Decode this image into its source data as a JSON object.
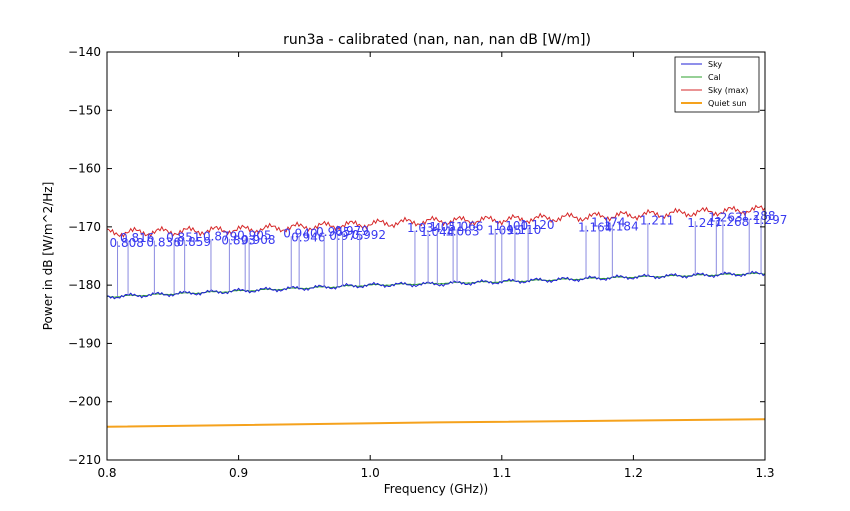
{
  "chart_data": {
    "type": "line",
    "title": "run3a - calibrated (nan, nan, nan dB [W/m])",
    "xlabel": "Frequency (GHz))",
    "ylabel": "Power in dB [W/m^2/Hz]",
    "xlim": [
      0.8,
      1.3
    ],
    "ylim": [
      -210,
      -140
    ],
    "xticks": [
      0.8,
      0.9,
      1.0,
      1.1,
      1.2,
      1.3
    ],
    "xtick_labels": [
      "0.8",
      "0.9",
      "1.0",
      "1.1",
      "1.2",
      "1.3"
    ],
    "yticks": [
      -140,
      -150,
      -160,
      -170,
      -180,
      -190,
      -200,
      -210
    ],
    "ytick_labels": [
      "−140",
      "−150",
      "−160",
      "−170",
      "−180",
      "−190",
      "−200",
      "−210"
    ],
    "legend_position": "top-right",
    "series": [
      {
        "name": "Sky",
        "color": "#1f1fd6",
        "x": [
          0.8,
          0.85,
          0.9,
          0.95,
          1.0,
          1.05,
          1.1,
          1.15,
          1.2,
          1.25,
          1.3
        ],
        "values": [
          -182.0,
          -181.5,
          -181.0,
          -180.5,
          -180.0,
          -179.8,
          -179.4,
          -179.0,
          -178.6,
          -178.3,
          -178.0
        ]
      },
      {
        "name": "Cal",
        "color": "#2ca02c",
        "x": [
          0.8,
          0.9,
          1.0,
          1.1,
          1.2,
          1.3
        ],
        "values": [
          -182.0,
          -181.0,
          -180.0,
          -179.4,
          -178.6,
          -178.0
        ]
      },
      {
        "name": "Sky (max)",
        "color": "#d62728",
        "x": [
          0.8,
          0.85,
          0.9,
          0.95,
          1.0,
          1.05,
          1.1,
          1.15,
          1.2,
          1.25,
          1.3
        ],
        "values": [
          -171.0,
          -170.8,
          -170.5,
          -170.0,
          -169.5,
          -169.0,
          -168.8,
          -168.4,
          -168.0,
          -167.5,
          -167.0
        ]
      },
      {
        "name": "Quiet sun",
        "color": "#f5a21d",
        "x": [
          0.8,
          0.9,
          1.0,
          1.1,
          1.2,
          1.3
        ],
        "values": [
          -204.3,
          -204.0,
          -203.7,
          -203.4,
          -203.2,
          -203.0
        ]
      }
    ],
    "peaks": [
      {
        "x": 0.808,
        "label": "0.808"
      },
      {
        "x": 0.816,
        "label": "0.816"
      },
      {
        "x": 0.836,
        "label": "0.836"
      },
      {
        "x": 0.851,
        "label": "0.851"
      },
      {
        "x": 0.859,
        "label": "0.859"
      },
      {
        "x": 0.879,
        "label": "0.879"
      },
      {
        "x": 0.893,
        "label": "0.893"
      },
      {
        "x": 0.905,
        "label": "0.905"
      },
      {
        "x": 0.908,
        "label": "0.908"
      },
      {
        "x": 0.94,
        "label": "0.940"
      },
      {
        "x": 0.946,
        "label": "0.946"
      },
      {
        "x": 0.965,
        "label": "0.965"
      },
      {
        "x": 0.975,
        "label": "0.975"
      },
      {
        "x": 0.979,
        "label": "0.979"
      },
      {
        "x": 0.992,
        "label": "0.992"
      },
      {
        "x": 1.034,
        "label": "1.034"
      },
      {
        "x": 1.044,
        "label": "1.044"
      },
      {
        "x": 1.051,
        "label": "1.051"
      },
      {
        "x": 1.063,
        "label": "1.063"
      },
      {
        "x": 1.066,
        "label": "1.066"
      },
      {
        "x": 1.095,
        "label": "1.095"
      },
      {
        "x": 1.1,
        "label": "1.100"
      },
      {
        "x": 1.11,
        "label": "1.110"
      },
      {
        "x": 1.12,
        "label": "1.120"
      },
      {
        "x": 1.164,
        "label": "1.164"
      },
      {
        "x": 1.174,
        "label": "1.174"
      },
      {
        "x": 1.184,
        "label": "1.184"
      },
      {
        "x": 1.211,
        "label": "1.211"
      },
      {
        "x": 1.247,
        "label": "1.247"
      },
      {
        "x": 1.263,
        "label": "1.263"
      },
      {
        "x": 1.268,
        "label": "1.268"
      },
      {
        "x": 1.288,
        "label": "1.288"
      },
      {
        "x": 1.297,
        "label": "1.297"
      }
    ]
  }
}
